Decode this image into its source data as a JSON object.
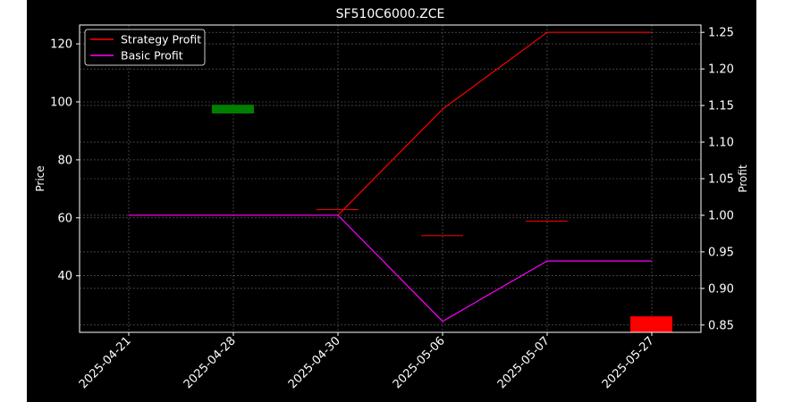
{
  "chart_data": {
    "type": "line",
    "title": "SF510C6000.ZCE",
    "categories": [
      "2025-04-21",
      "2025-04-28",
      "2025-04-30",
      "2025-05-06",
      "2025-05-07",
      "2025-05-27"
    ],
    "xlabel": "",
    "ylabel_left": "Price",
    "ylabel_right": "Profit",
    "ylim_left": [
      20.5,
      126.5
    ],
    "ylim_right": [
      0.84,
      1.26
    ],
    "yticks_left": [
      40,
      60,
      80,
      100,
      120
    ],
    "yticks_right": [
      0.85,
      0.9,
      0.95,
      1.0,
      1.05,
      1.1,
      1.15,
      1.2,
      1.25
    ],
    "grid": true,
    "legend": {
      "position": "top-left"
    },
    "series": [
      {
        "name": "Strategy Profit",
        "axis": "right",
        "color": "#ff0000",
        "values": [
          1.0,
          1.0,
          1.0,
          1.145,
          1.25,
          1.25
        ]
      },
      {
        "name": "Basic Profit",
        "axis": "right",
        "color": "#ff00ff",
        "values": [
          1.0,
          1.0,
          1.0,
          0.855,
          0.9375,
          0.9375
        ]
      }
    ],
    "candles": [
      {
        "x": "2025-04-28",
        "open": 96,
        "close": 99,
        "color": "#008000"
      },
      {
        "x": "2025-04-30",
        "open": 63,
        "close": 63,
        "color": "#ff0000"
      },
      {
        "x": "2025-05-06",
        "open": 54,
        "close": 54,
        "color": "#ff0000"
      },
      {
        "x": "2025-05-07",
        "open": 59,
        "close": 59,
        "color": "#ff0000"
      },
      {
        "x": "2025-05-27",
        "open": 26,
        "close": 20.5,
        "color": "#ff0000"
      }
    ],
    "colors": {
      "background": "#000000",
      "text": "#ffffff",
      "grid": "#b0b0b0"
    }
  }
}
